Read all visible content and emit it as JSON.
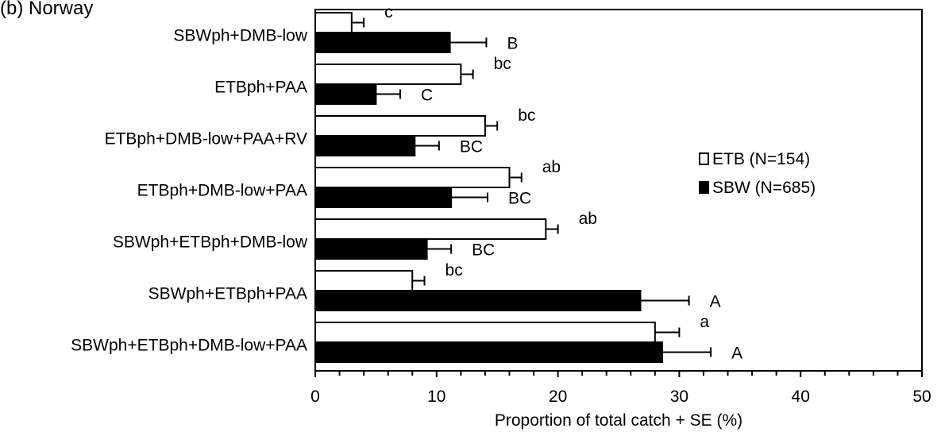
{
  "chart_data": {
    "type": "bar",
    "orientation": "horizontal",
    "title": "(b)  Norway",
    "xlabel": "Proportion of total catch + SE (%)",
    "xlim": [
      0,
      50
    ],
    "xticks": [
      0,
      10,
      20,
      30,
      40,
      50
    ],
    "grid": false,
    "legend_position": "right",
    "categories": [
      "SBWph+DMB-low",
      "ETBph+PAA",
      "ETBph+DMB-low+PAA+RV",
      "ETBph+DMB-low+PAA",
      "SBWph+ETBph+DMB-low",
      "SBWph+ETBph+PAA",
      "SBWph+ETBph+DMB-low+PAA"
    ],
    "series": [
      {
        "name": "ETB (N=154)",
        "color": "#ffffff",
        "values": [
          3,
          12,
          14,
          16,
          19,
          8,
          28
        ],
        "se": [
          1,
          1,
          1,
          1,
          1,
          1,
          2
        ],
        "labels": [
          "c",
          "bc",
          "bc",
          "ab",
          "ab",
          "bc",
          "a"
        ]
      },
      {
        "name": "SBW (N=685)",
        "color": "#000000",
        "values": [
          11.1,
          5,
          8.2,
          11.2,
          9.2,
          26.8,
          28.6
        ],
        "se": [
          3,
          2,
          2,
          3,
          2,
          4,
          4
        ],
        "labels": [
          "B",
          "C",
          "BC",
          "BC",
          "BC",
          "A",
          "A"
        ]
      }
    ]
  }
}
